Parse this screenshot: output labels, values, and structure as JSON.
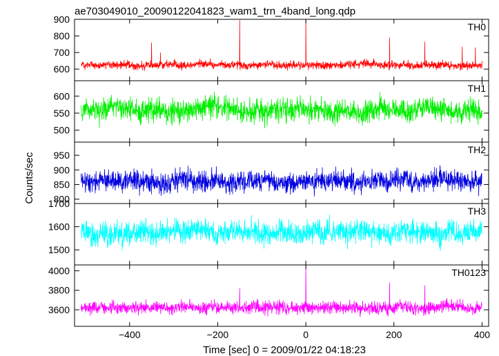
{
  "chart_data": {
    "type": "line",
    "title": "ae703049010_20090122041823_wam1_trn_4band_long.qdp",
    "xlabel": "Time [sec] 0 = 2009/01/22 04:18:23",
    "ylabel": "Counts/sec",
    "xlim": [
      -525,
      415
    ],
    "x_tick_labels": [
      "−400",
      "−200",
      "0",
      "200",
      "400"
    ],
    "x_ticks": [
      -400,
      -200,
      0,
      200,
      400
    ],
    "x_range_data": [
      -510,
      400
    ],
    "grid": false,
    "panels": [
      {
        "name": "TH0",
        "color": "#ff0000",
        "ylim": [
          530,
          900
        ],
        "yticks": [
          600,
          700,
          800,
          900
        ],
        "ytick_labels": [
          "600",
          "700",
          "800",
          "900"
        ],
        "mean": 625,
        "noise": 22,
        "spikes": [
          [
            -350,
            760
          ],
          [
            -330,
            700
          ],
          [
            -150,
            895
          ],
          [
            0,
            900
          ],
          [
            190,
            790
          ],
          [
            270,
            765
          ],
          [
            355,
            735
          ],
          [
            385,
            730
          ]
        ]
      },
      {
        "name": "TH1",
        "color": "#00ee00",
        "ylim": [
          465,
          645
        ],
        "yticks": [
          500,
          550,
          600
        ],
        "ytick_labels": [
          "500",
          "550",
          "600"
        ],
        "mean": 560,
        "noise": 30,
        "spikes": []
      },
      {
        "name": "TH2",
        "color": "#0000e0",
        "ylim": [
          785,
          995
        ],
        "yticks": [
          800,
          850,
          900,
          950
        ],
        "ytick_labels": [
          "800",
          "850",
          "900",
          "950"
        ],
        "mean": 862,
        "noise": 32,
        "spikes": []
      },
      {
        "name": "TH3",
        "color": "#00ffff",
        "ylim": [
          1435,
          1700
        ],
        "yticks": [
          1500,
          1600,
          1700
        ],
        "ytick_labels": [
          "1500",
          "1600",
          "1700"
        ],
        "mean": 1575,
        "noise": 45,
        "spikes": []
      },
      {
        "name": "TH0123",
        "color": "#ff00ff",
        "ylim": [
          3430,
          4060
        ],
        "yticks": [
          3600,
          3800,
          4000
        ],
        "ytick_labels": [
          "3600",
          "3800",
          "4000"
        ],
        "mean": 3625,
        "noise": 60,
        "spikes": [
          [
            -150,
            3820
          ],
          [
            0,
            4060
          ],
          [
            190,
            3880
          ],
          [
            270,
            3850
          ]
        ]
      }
    ]
  }
}
